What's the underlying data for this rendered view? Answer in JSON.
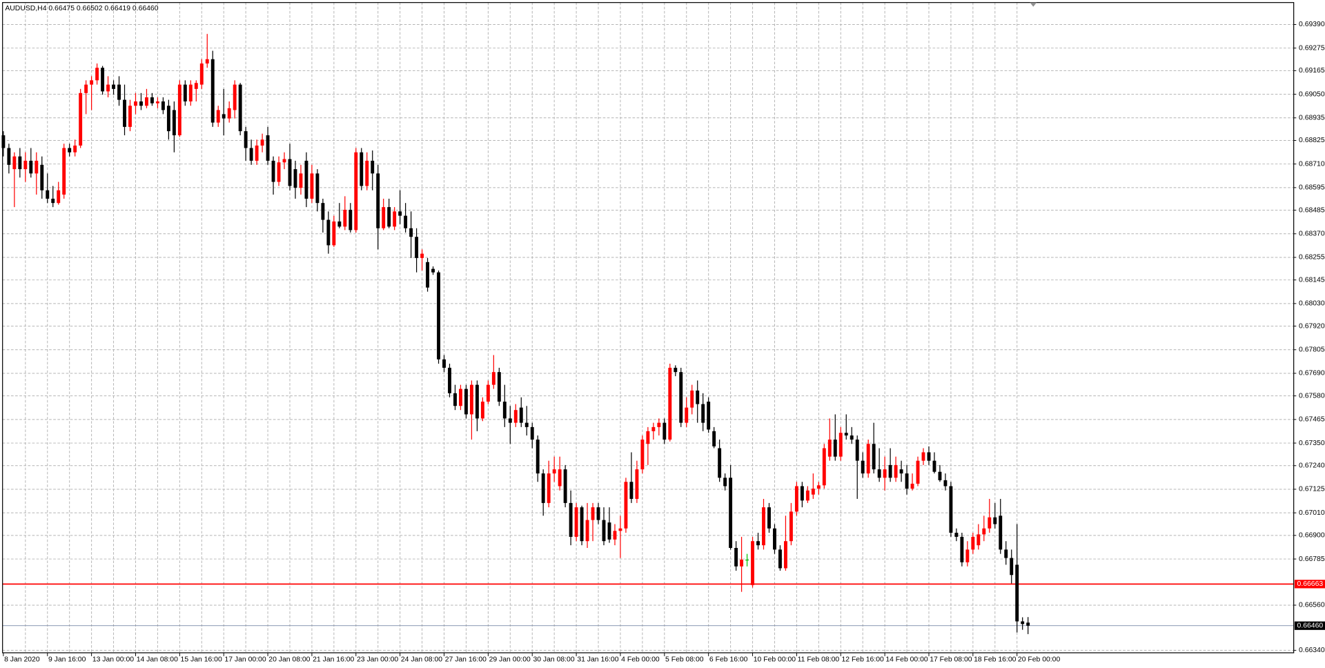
{
  "chart_data": {
    "type": "candlestick",
    "title": "AUDUSD,H4 0.66475 0.66502 0.66419 0.66460",
    "categories": [
      "8 Jan 2020",
      null,
      null,
      null,
      null,
      null,
      null,
      null,
      "9 Jan 16:00",
      null,
      null,
      null,
      null,
      null,
      null,
      null,
      "13 Jan 00:00",
      null,
      null,
      null,
      null,
      null,
      null,
      null,
      "14 Jan 08:00",
      null,
      null,
      null,
      null,
      null,
      null,
      null,
      "15 Jan 16:00",
      null,
      null,
      null,
      null,
      null,
      null,
      null,
      "17 Jan 00:00",
      null,
      null,
      null,
      null,
      null,
      null,
      null,
      "20 Jan 08:00",
      null,
      null,
      null,
      null,
      null,
      null,
      null,
      "21 Jan 16:00",
      null,
      null,
      null,
      null,
      null,
      null,
      null,
      "23 Jan 00:00",
      null,
      null,
      null,
      null,
      null,
      null,
      null,
      "24 Jan 08:00",
      null,
      null,
      null,
      null,
      null,
      null,
      null,
      "27 Jan 16:00",
      null,
      null,
      null,
      null,
      null,
      null,
      null,
      "29 Jan 00:00",
      null,
      null,
      null,
      null,
      null,
      null,
      null,
      "30 Jan 08:00",
      null,
      null,
      null,
      null,
      null,
      null,
      null,
      "31 Jan 16:00",
      null,
      null,
      null,
      null,
      null,
      null,
      null,
      "4 Feb 00:00",
      null,
      null,
      null,
      null,
      null,
      null,
      null,
      "5 Feb 08:00",
      null,
      null,
      null,
      null,
      null,
      null,
      null,
      "6 Feb 16:00",
      null,
      null,
      null,
      null,
      null,
      null,
      null,
      "10 Feb 00:00",
      null,
      null,
      null,
      null,
      null,
      null,
      null,
      "11 Feb 08:00",
      null,
      null,
      null,
      null,
      null,
      null,
      null,
      "12 Feb 16:00",
      null,
      null,
      null,
      null,
      null,
      null,
      null,
      "14 Feb 00:00",
      null,
      null,
      null,
      null,
      null,
      null,
      null,
      "17 Feb 08:00",
      null,
      null,
      null,
      null,
      null,
      null,
      null,
      "18 Feb 16:00",
      null,
      null,
      null,
      null,
      null,
      null,
      null,
      "20 Feb 00:00",
      null,
      null
    ],
    "open": [
      0.6885,
      0.68788,
      0.68685,
      0.68747,
      0.68685,
      0.68726,
      0.68664,
      0.68706,
      0.68582,
      0.68541,
      0.6852,
      0.68561,
      0.68788,
      0.68767,
      0.688,
      0.69056,
      0.69097,
      0.69118,
      0.69179,
      0.69064,
      0.69097,
      0.69097,
      0.69023,
      0.68891,
      0.68994,
      0.69015,
      0.68994,
      0.69035,
      0.69006,
      0.69015,
      0.68994,
      0.68973,
      0.6885,
      0.69097,
      0.69015,
      0.69076,
      0.69097,
      0.692,
      0.69221,
      0.68912,
      0.68953,
      0.68932,
      0.68973,
      0.69097,
      0.6887,
      0.68788,
      0.68726,
      0.688,
      0.6885,
      0.68726,
      0.68623,
      0.68718,
      0.68734,
      0.68685,
      0.68594,
      0.68726,
      0.68541,
      0.68664,
      0.6852,
      0.68438,
      0.68314,
      0.6843,
      0.68405,
      0.68487,
      0.68388,
      0.68767,
      0.68603,
      0.68726,
      0.68664,
      0.68397,
      0.685,
      0.68405,
      0.68479,
      0.68458,
      0.68397,
      0.68355,
      0.68252,
      0.68232,
      0.68199,
      0.68182,
      0.67758,
      0.67717,
      0.67593,
      0.67531,
      0.67614,
      0.6749,
      0.67634,
      0.6747,
      0.67552,
      0.67634,
      0.67696,
      0.67552,
      0.6747,
      0.67449,
      0.67523,
      0.67449,
      0.67428,
      0.67367,
      0.67202,
      0.67058,
      0.67202,
      0.6714,
      0.67222,
      0.67058,
      0.66893,
      0.67037,
      0.66872,
      0.66975,
      0.67037,
      0.66975,
      0.66963,
      0.6688,
      0.66922,
      0.66934,
      0.67161,
      0.67078,
      0.67222,
      0.67346,
      0.67408,
      0.67428,
      0.67449,
      0.67367,
      0.67717,
      0.67696,
      0.67449,
      0.67523,
      0.67606,
      0.6754,
      0.67552,
      0.67408,
      0.67325,
      0.67181,
      0.67181,
      0.66839,
      0.66749,
      0.66782,
      0.66658,
      0.66872,
      0.66852,
      0.67037,
      0.66934,
      0.66831,
      0.6674,
      0.66872,
      0.67016,
      0.6714,
      0.6707,
      0.67099,
      0.67128,
      0.67144,
      0.67284,
      0.67367,
      0.67284,
      0.674,
      0.67387,
      0.67367,
      0.67264,
      0.67202,
      0.67346,
      0.67222,
      0.67181,
      0.67243,
      0.67181,
      0.67222,
      0.67202,
      0.67128,
      0.67152,
      0.67264,
      0.67305,
      0.67264,
      0.6721,
      0.67169,
      0.6714,
      0.66913,
      0.66893,
      0.66769,
      0.66831,
      0.66852,
      0.66905,
      0.66934,
      0.66988,
      0.66996,
      0.66831,
      0.6679,
      0.66757,
      0.66481,
      0.66475
    ],
    "high": [
      0.6887,
      0.68809,
      0.68767,
      0.68788,
      0.68767,
      0.68788,
      0.68767,
      0.68747,
      0.68664,
      0.68603,
      0.68623,
      0.68809,
      0.68809,
      0.68829,
      0.69076,
      0.69118,
      0.69138,
      0.692,
      0.69188,
      0.69138,
      0.69118,
      0.69138,
      0.69097,
      0.69023,
      0.69056,
      0.69056,
      0.69076,
      0.69056,
      0.69035,
      0.69035,
      0.69023,
      0.69015,
      0.69118,
      0.69118,
      0.69118,
      0.69118,
      0.69221,
      0.69344,
      0.69262,
      0.68994,
      0.69076,
      0.69015,
      0.69118,
      0.69105,
      0.68891,
      0.68829,
      0.68829,
      0.68858,
      0.68891,
      0.68747,
      0.68747,
      0.68767,
      0.68809,
      0.68726,
      0.68706,
      0.68767,
      0.68706,
      0.68685,
      0.68541,
      0.68479,
      0.68458,
      0.6852,
      0.68553,
      0.6852,
      0.68788,
      0.68788,
      0.68767,
      0.68776,
      0.68706,
      0.68541,
      0.68541,
      0.685,
      0.68582,
      0.6852,
      0.68479,
      0.68397,
      0.68294,
      0.68252,
      0.68211,
      0.68191,
      0.67779,
      0.67737,
      0.67634,
      0.67634,
      0.67634,
      0.67655,
      0.67655,
      0.67573,
      0.67655,
      0.67779,
      0.67717,
      0.67634,
      0.67531,
      0.6754,
      0.67573,
      0.67531,
      0.67449,
      0.67387,
      0.67222,
      0.67264,
      0.67284,
      0.67284,
      0.67243,
      0.67119,
      0.67058,
      0.67045,
      0.67058,
      0.67058,
      0.67058,
      0.67037,
      0.67037,
      0.66955,
      0.66996,
      0.67181,
      0.67305,
      0.67264,
      0.67387,
      0.67428,
      0.67449,
      0.6747,
      0.6747,
      0.67737,
      0.67729,
      0.67717,
      0.67573,
      0.67634,
      0.67655,
      0.67593,
      0.67573,
      0.67428,
      0.67367,
      0.67202,
      0.67243,
      0.66872,
      0.66893,
      0.6681,
      0.66893,
      0.66913,
      0.67078,
      0.67058,
      0.66955,
      0.66852,
      0.66996,
      0.67058,
      0.67161,
      0.67161,
      0.6714,
      0.67202,
      0.67161,
      0.67346,
      0.6747,
      0.6749,
      0.67428,
      0.6749,
      0.67428,
      0.67387,
      0.67305,
      0.67367,
      0.67449,
      0.67325,
      0.67284,
      0.67325,
      0.67284,
      0.67264,
      0.67243,
      0.67202,
      0.67284,
      0.67325,
      0.67334,
      0.67305,
      0.67243,
      0.67202,
      0.67161,
      0.66934,
      0.66913,
      0.66872,
      0.66913,
      0.66955,
      0.66996,
      0.67078,
      0.67058,
      0.67078,
      0.66872,
      0.66831,
      0.66955,
      0.66501,
      0.66502
    ],
    "low": [
      0.68747,
      0.68664,
      0.685,
      0.68644,
      0.68623,
      0.68644,
      0.68561,
      0.68541,
      0.6852,
      0.685,
      0.68512,
      0.68541,
      0.68747,
      0.68747,
      0.68788,
      0.68953,
      0.68973,
      0.69097,
      0.69048,
      0.69035,
      0.69048,
      0.68994,
      0.6885,
      0.6887,
      0.68953,
      0.68973,
      0.68982,
      0.68994,
      0.68982,
      0.68953,
      0.68829,
      0.68767,
      0.68842,
      0.68994,
      0.68994,
      0.69015,
      0.69076,
      0.69179,
      0.68891,
      0.68891,
      0.6885,
      0.68912,
      0.68932,
      0.6885,
      0.68726,
      0.68706,
      0.68706,
      0.68767,
      0.68706,
      0.68561,
      0.68603,
      0.68685,
      0.68582,
      0.68541,
      0.68561,
      0.685,
      0.6852,
      0.68479,
      0.68376,
      0.68273,
      0.68306,
      0.68397,
      0.68388,
      0.68376,
      0.68376,
      0.68582,
      0.68582,
      0.68582,
      0.68294,
      0.68388,
      0.68397,
      0.68388,
      0.68417,
      0.68376,
      0.68252,
      0.68182,
      0.68191,
      0.68088,
      0.6817,
      0.67737,
      0.67696,
      0.67573,
      0.67511,
      0.67511,
      0.6747,
      0.67367,
      0.67408,
      0.67457,
      0.6754,
      0.67614,
      0.67531,
      0.67428,
      0.67346,
      0.67428,
      0.67428,
      0.67387,
      0.67325,
      0.67161,
      0.66996,
      0.67037,
      0.67161,
      0.67119,
      0.67037,
      0.66852,
      0.66872,
      0.66852,
      0.66839,
      0.66872,
      0.66955,
      0.66852,
      0.66864,
      0.66852,
      0.6679,
      0.66913,
      0.67058,
      0.67058,
      0.67202,
      0.67243,
      0.67367,
      0.67387,
      0.67346,
      0.67358,
      0.67676,
      0.67428,
      0.67428,
      0.6749,
      0.67449,
      0.67408,
      0.674,
      0.67325,
      0.67161,
      0.67119,
      0.66831,
      0.66728,
      0.66625,
      0.66749,
      0.66646,
      0.66831,
      0.66831,
      0.66913,
      0.6681,
      0.66728,
      0.66728,
      0.66852,
      0.66996,
      0.67037,
      0.67058,
      0.67078,
      0.67099,
      0.67128,
      0.67264,
      0.67264,
      0.67264,
      0.67367,
      0.67346,
      0.67078,
      0.67181,
      0.67181,
      0.67202,
      0.67161,
      0.67119,
      0.67161,
      0.67161,
      0.67161,
      0.67099,
      0.67119,
      0.6714,
      0.67243,
      0.67243,
      0.67202,
      0.67161,
      0.67119,
      0.66893,
      0.66872,
      0.66749,
      0.66749,
      0.6681,
      0.66831,
      0.66872,
      0.66913,
      0.66934,
      0.6681,
      0.66757,
      0.66666,
      0.66427,
      0.6644,
      0.66419
    ],
    "close": [
      0.68788,
      0.68706,
      0.68747,
      0.68685,
      0.68726,
      0.68664,
      0.68726,
      0.68582,
      0.68541,
      0.6852,
      0.68582,
      0.68788,
      0.68767,
      0.688,
      0.69056,
      0.69097,
      0.69118,
      0.69179,
      0.69064,
      0.69097,
      0.69076,
      0.69023,
      0.68891,
      0.68994,
      0.69015,
      0.68994,
      0.69035,
      0.69006,
      0.69015,
      0.68973,
      0.6887,
      0.6885,
      0.69097,
      0.69015,
      0.69097,
      0.69105,
      0.692,
      0.69221,
      0.68912,
      0.68973,
      0.68932,
      0.68982,
      0.69097,
      0.6887,
      0.68788,
      0.68726,
      0.688,
      0.68829,
      0.68726,
      0.68623,
      0.68718,
      0.68734,
      0.68603,
      0.68594,
      0.68664,
      0.68541,
      0.68664,
      0.6852,
      0.68438,
      0.68314,
      0.6843,
      0.68405,
      0.68487,
      0.68388,
      0.68767,
      0.68603,
      0.68726,
      0.68664,
      0.68397,
      0.685,
      0.68405,
      0.68479,
      0.68458,
      0.68397,
      0.68355,
      0.68252,
      0.68273,
      0.68108,
      0.68182,
      0.67758,
      0.67717,
      0.67593,
      0.67531,
      0.67614,
      0.6749,
      0.67634,
      0.6747,
      0.67552,
      0.67634,
      0.67696,
      0.67552,
      0.6747,
      0.67449,
      0.67511,
      0.67449,
      0.67428,
      0.67367,
      0.67202,
      0.67058,
      0.67202,
      0.67222,
      0.67222,
      0.67058,
      0.66893,
      0.67037,
      0.66872,
      0.66975,
      0.67037,
      0.66975,
      0.66872,
      0.6688,
      0.66922,
      0.66934,
      0.67161,
      0.67078,
      0.67222,
      0.67367,
      0.67408,
      0.67428,
      0.67449,
      0.67367,
      0.67717,
      0.67696,
      0.67449,
      0.67523,
      0.67606,
      0.6754,
      0.67449,
      0.67416,
      0.67334,
      0.67181,
      0.6714,
      0.66839,
      0.66749,
      0.66782,
      0.66782,
      0.66872,
      0.66852,
      0.67037,
      0.66934,
      0.66831,
      0.6674,
      0.66872,
      0.67016,
      0.6714,
      0.6707,
      0.67119,
      0.67128,
      0.67144,
      0.67325,
      0.67367,
      0.67284,
      0.674,
      0.67387,
      0.67367,
      0.67264,
      0.67202,
      0.67346,
      0.67222,
      0.67181,
      0.67222,
      0.67181,
      0.67243,
      0.67202,
      0.67128,
      0.67152,
      0.67264,
      0.67305,
      0.67264,
      0.6721,
      0.67169,
      0.6714,
      0.66913,
      0.66893,
      0.66769,
      0.66831,
      0.66893,
      0.66905,
      0.66934,
      0.66988,
      0.66955,
      0.66831,
      0.6679,
      0.66707,
      0.66481,
      0.66468,
      0.6646
    ],
    "up_color": "#ff0000",
    "down_color": "#000000",
    "doji_color": "#00c000",
    "ylim": [
      0.66328,
      0.69497
    ],
    "yticks": [
      {
        "value": 0.6939,
        "label": "0.69390"
      },
      0.69275,
      0.69165,
      {
        "value": 0.6905,
        "label": "0.69050"
      },
      0.68935,
      0.68825,
      {
        "value": 0.6871,
        "label": "0.68710"
      },
      0.68595,
      0.68485,
      {
        "value": 0.6837,
        "label": "0.68370"
      },
      0.68255,
      0.68145,
      {
        "value": 0.6803,
        "label": "0.68030"
      },
      {
        "value": 0.6792,
        "label": "0.67920"
      },
      0.67805,
      {
        "value": 0.6769,
        "label": "0.67690"
      },
      {
        "value": 0.6758,
        "label": "0.67580"
      },
      0.67465,
      {
        "value": 0.6735,
        "label": "0.67350"
      },
      {
        "value": 0.6724,
        "label": "0.67240"
      },
      0.67125,
      {
        "value": 0.6701,
        "label": "0.67010"
      },
      {
        "value": 0.669,
        "label": "0.66900"
      },
      0.66785,
      {
        "value": 0.6656,
        "label": "0.66560"
      },
      {
        "value": 0.6634,
        "label": "0.66340"
      }
    ],
    "grid": true,
    "grid_color": "#b4b4b4",
    "hlines": [
      {
        "value": 0.66663,
        "color": "#ff0000"
      },
      {
        "value": 0.6646,
        "label": "0.66460",
        "color": "#7a8aa8"
      }
    ]
  }
}
